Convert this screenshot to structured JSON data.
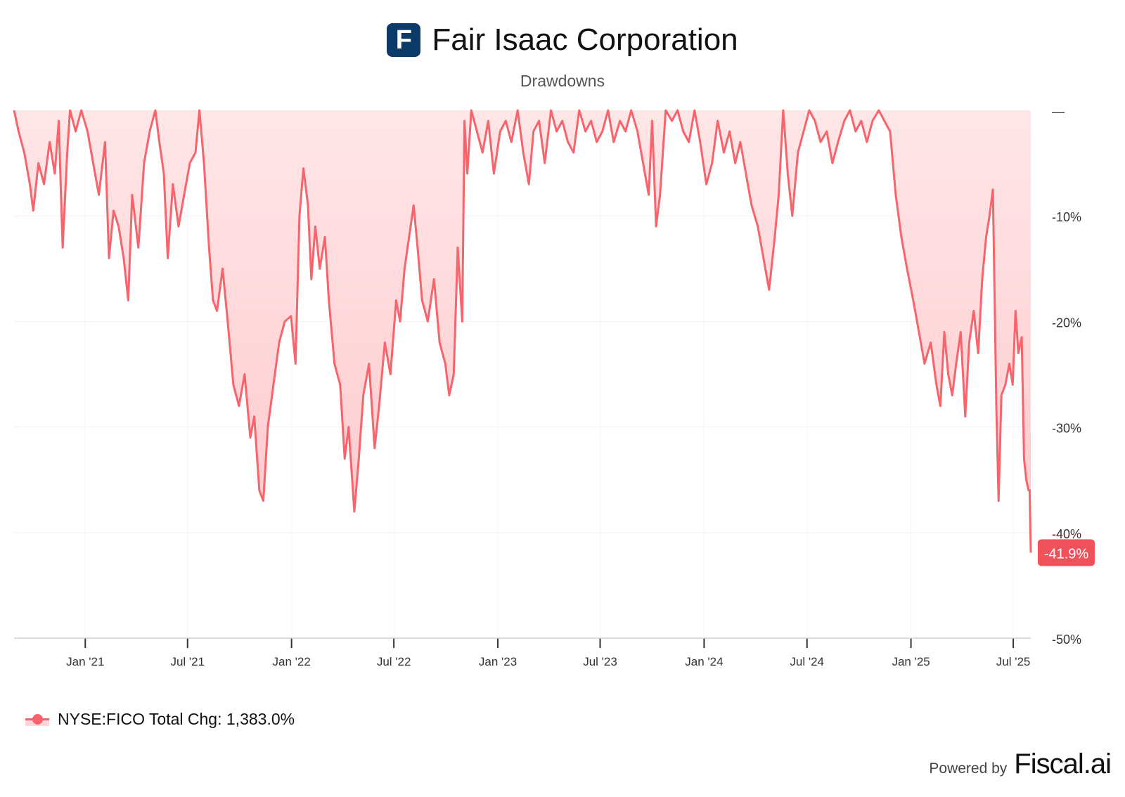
{
  "header": {
    "logo_letter": "F",
    "title": "Fair Isaac Corporation",
    "subtitle": "Drawdowns"
  },
  "footer": {
    "powered_label": "Powered by",
    "brand": "Fiscal.ai"
  },
  "legend": {
    "label": "NYSE:FICO Total Chg: 1,383.0%"
  },
  "colors": {
    "logo_bg": "#0b3b66",
    "line": "#f9636b",
    "fill": "#ffd6d8",
    "badge": "#f0525c"
  },
  "chart_data": {
    "type": "area",
    "title": "Drawdowns",
    "xlabel": "",
    "ylabel": "",
    "xlim": [
      "2020-08-28",
      "2025-08-01"
    ],
    "ylim": [
      -50,
      0
    ],
    "yticks": [
      0,
      -10,
      -20,
      -30,
      -40,
      -50
    ],
    "ytick_labels": [
      "—",
      "-10%",
      "-20%",
      "-30%",
      "-40%",
      "-50%"
    ],
    "xticks": [
      "2021-01-01",
      "2021-07-01",
      "2022-01-01",
      "2022-07-01",
      "2023-01-01",
      "2023-07-01",
      "2024-01-01",
      "2024-07-01",
      "2025-01-01",
      "2025-07-01"
    ],
    "xtick_labels": [
      "Jan '21",
      "Jul '21",
      "Jan '22",
      "Jul '22",
      "Jan '23",
      "Jul '23",
      "Jan '24",
      "Jul '24",
      "Jan '25",
      "Jul '25"
    ],
    "last_value_label": "-41.9%",
    "grid": true,
    "legend_position": "bottom-left",
    "series": [
      {
        "name": "NYSE:FICO",
        "points": [
          [
            "2020-08-28",
            0
          ],
          [
            "2020-09-05",
            -2
          ],
          [
            "2020-09-15",
            -4
          ],
          [
            "2020-09-25",
            -7
          ],
          [
            "2020-10-01",
            -9.5
          ],
          [
            "2020-10-10",
            -5
          ],
          [
            "2020-10-20",
            -7
          ],
          [
            "2020-10-30",
            -3
          ],
          [
            "2020-11-08",
            -6
          ],
          [
            "2020-11-15",
            -1
          ],
          [
            "2020-11-22",
            -13
          ],
          [
            "2020-11-30",
            -4
          ],
          [
            "2020-12-05",
            0
          ],
          [
            "2020-12-15",
            -2
          ],
          [
            "2020-12-25",
            0
          ],
          [
            "2021-01-05",
            -2
          ],
          [
            "2021-01-15",
            -5
          ],
          [
            "2021-01-25",
            -8
          ],
          [
            "2021-02-05",
            -3
          ],
          [
            "2021-02-12",
            -14
          ],
          [
            "2021-02-20",
            -9.5
          ],
          [
            "2021-03-01",
            -11
          ],
          [
            "2021-03-10",
            -14
          ],
          [
            "2021-03-18",
            -18
          ],
          [
            "2021-03-25",
            -8
          ],
          [
            "2021-04-05",
            -13
          ],
          [
            "2021-04-15",
            -5
          ],
          [
            "2021-04-25",
            -2
          ],
          [
            "2021-05-05",
            0
          ],
          [
            "2021-05-12",
            -3
          ],
          [
            "2021-05-20",
            -6
          ],
          [
            "2021-05-27",
            -14
          ],
          [
            "2021-06-05",
            -7
          ],
          [
            "2021-06-15",
            -11
          ],
          [
            "2021-06-25",
            -8
          ],
          [
            "2021-07-05",
            -5
          ],
          [
            "2021-07-15",
            -4
          ],
          [
            "2021-07-22",
            0
          ],
          [
            "2021-07-30",
            -5
          ],
          [
            "2021-08-08",
            -13
          ],
          [
            "2021-08-15",
            -18
          ],
          [
            "2021-08-22",
            -19
          ],
          [
            "2021-09-01",
            -15
          ],
          [
            "2021-09-10",
            -20
          ],
          [
            "2021-09-20",
            -26
          ],
          [
            "2021-09-30",
            -28
          ],
          [
            "2021-10-10",
            -25
          ],
          [
            "2021-10-20",
            -31
          ],
          [
            "2021-10-27",
            -29
          ],
          [
            "2021-11-05",
            -36
          ],
          [
            "2021-11-12",
            -37
          ],
          [
            "2021-11-20",
            -30
          ],
          [
            "2021-11-30",
            -26
          ],
          [
            "2021-12-10",
            -22
          ],
          [
            "2021-12-20",
            -20
          ],
          [
            "2021-12-31",
            -19.5
          ],
          [
            "2022-01-08",
            -24
          ],
          [
            "2022-01-15",
            -10
          ],
          [
            "2022-01-22",
            -5.5
          ],
          [
            "2022-01-30",
            -9
          ],
          [
            "2022-02-05",
            -16
          ],
          [
            "2022-02-12",
            -11
          ],
          [
            "2022-02-20",
            -15
          ],
          [
            "2022-03-01",
            -12
          ],
          [
            "2022-03-08",
            -18
          ],
          [
            "2022-03-18",
            -24
          ],
          [
            "2022-03-28",
            -26
          ],
          [
            "2022-04-05",
            -33
          ],
          [
            "2022-04-12",
            -30
          ],
          [
            "2022-04-22",
            -38
          ],
          [
            "2022-04-30",
            -33
          ],
          [
            "2022-05-08",
            -27
          ],
          [
            "2022-05-18",
            -24
          ],
          [
            "2022-05-28",
            -32
          ],
          [
            "2022-06-05",
            -28
          ],
          [
            "2022-06-15",
            -22
          ],
          [
            "2022-06-25",
            -25
          ],
          [
            "2022-07-05",
            -18
          ],
          [
            "2022-07-12",
            -20
          ],
          [
            "2022-07-20",
            -15
          ],
          [
            "2022-07-28",
            -12
          ],
          [
            "2022-08-05",
            -9
          ],
          [
            "2022-08-12",
            -13
          ],
          [
            "2022-08-20",
            -18
          ],
          [
            "2022-08-30",
            -20
          ],
          [
            "2022-09-10",
            -16
          ],
          [
            "2022-09-20",
            -22
          ],
          [
            "2022-09-30",
            -24
          ],
          [
            "2022-10-07",
            -27
          ],
          [
            "2022-10-15",
            -25
          ],
          [
            "2022-10-22",
            -13
          ],
          [
            "2022-10-30",
            -20
          ],
          [
            "2022-11-03",
            -1
          ],
          [
            "2022-11-08",
            -6
          ],
          [
            "2022-11-15",
            0
          ],
          [
            "2022-11-25",
            -2
          ],
          [
            "2022-12-05",
            -4
          ],
          [
            "2022-12-15",
            -1
          ],
          [
            "2022-12-25",
            -6
          ],
          [
            "2023-01-05",
            -2
          ],
          [
            "2023-01-15",
            -1
          ],
          [
            "2023-01-25",
            -3
          ],
          [
            "2023-02-05",
            0
          ],
          [
            "2023-02-15",
            -4
          ],
          [
            "2023-02-25",
            -7
          ],
          [
            "2023-03-05",
            -2
          ],
          [
            "2023-03-15",
            -1
          ],
          [
            "2023-03-25",
            -5
          ],
          [
            "2023-04-05",
            0
          ],
          [
            "2023-04-15",
            -2
          ],
          [
            "2023-04-25",
            -1
          ],
          [
            "2023-05-05",
            -3
          ],
          [
            "2023-05-15",
            -4
          ],
          [
            "2023-05-25",
            0
          ],
          [
            "2023-06-05",
            -2
          ],
          [
            "2023-06-15",
            -1
          ],
          [
            "2023-06-25",
            -3
          ],
          [
            "2023-07-05",
            -2
          ],
          [
            "2023-07-15",
            0
          ],
          [
            "2023-07-25",
            -3
          ],
          [
            "2023-08-05",
            -1
          ],
          [
            "2023-08-15",
            -2
          ],
          [
            "2023-08-25",
            0
          ],
          [
            "2023-09-05",
            -2
          ],
          [
            "2023-09-15",
            -5
          ],
          [
            "2023-09-25",
            -8
          ],
          [
            "2023-10-01",
            -1
          ],
          [
            "2023-10-08",
            -11
          ],
          [
            "2023-10-15",
            -8
          ],
          [
            "2023-10-25",
            0
          ],
          [
            "2023-11-05",
            -1
          ],
          [
            "2023-11-15",
            0
          ],
          [
            "2023-11-25",
            -2
          ],
          [
            "2023-12-05",
            -3
          ],
          [
            "2023-12-15",
            0
          ],
          [
            "2023-12-25",
            -3
          ],
          [
            "2024-01-05",
            -7
          ],
          [
            "2024-01-15",
            -5
          ],
          [
            "2024-01-25",
            -1
          ],
          [
            "2024-02-05",
            -4
          ],
          [
            "2024-02-15",
            -2
          ],
          [
            "2024-02-25",
            -5
          ],
          [
            "2024-03-05",
            -3
          ],
          [
            "2024-03-15",
            -6
          ],
          [
            "2024-03-25",
            -9
          ],
          [
            "2024-04-05",
            -11
          ],
          [
            "2024-04-15",
            -14
          ],
          [
            "2024-04-25",
            -17
          ],
          [
            "2024-05-05",
            -12
          ],
          [
            "2024-05-12",
            -8
          ],
          [
            "2024-05-20",
            0
          ],
          [
            "2024-05-28",
            -6
          ],
          [
            "2024-06-05",
            -10
          ],
          [
            "2024-06-15",
            -4
          ],
          [
            "2024-06-25",
            -2
          ],
          [
            "2024-07-05",
            0
          ],
          [
            "2024-07-15",
            -1
          ],
          [
            "2024-07-25",
            -3
          ],
          [
            "2024-08-05",
            -2
          ],
          [
            "2024-08-15",
            -5
          ],
          [
            "2024-08-25",
            -3
          ],
          [
            "2024-09-05",
            -1
          ],
          [
            "2024-09-15",
            0
          ],
          [
            "2024-09-25",
            -2
          ],
          [
            "2024-10-05",
            -1
          ],
          [
            "2024-10-15",
            -3
          ],
          [
            "2024-10-25",
            -1
          ],
          [
            "2024-11-05",
            0
          ],
          [
            "2024-11-15",
            -1
          ],
          [
            "2024-11-25",
            -2
          ],
          [
            "2024-12-05",
            -8
          ],
          [
            "2024-12-15",
            -12
          ],
          [
            "2024-12-25",
            -15
          ],
          [
            "2025-01-05",
            -18
          ],
          [
            "2025-01-15",
            -21
          ],
          [
            "2025-01-25",
            -24
          ],
          [
            "2025-02-05",
            -22
          ],
          [
            "2025-02-15",
            -26
          ],
          [
            "2025-02-22",
            -28
          ],
          [
            "2025-03-01",
            -21
          ],
          [
            "2025-03-08",
            -25
          ],
          [
            "2025-03-15",
            -27
          ],
          [
            "2025-03-22",
            -24
          ],
          [
            "2025-03-30",
            -21
          ],
          [
            "2025-04-07",
            -29
          ],
          [
            "2025-04-14",
            -22
          ],
          [
            "2025-04-22",
            -19
          ],
          [
            "2025-04-30",
            -23
          ],
          [
            "2025-05-07",
            -16
          ],
          [
            "2025-05-14",
            -12
          ],
          [
            "2025-05-20",
            -10
          ],
          [
            "2025-05-26",
            -7.5
          ],
          [
            "2025-06-01",
            -28
          ],
          [
            "2025-06-05",
            -37
          ],
          [
            "2025-06-10",
            -27
          ],
          [
            "2025-06-17",
            -26
          ],
          [
            "2025-06-24",
            -24
          ],
          [
            "2025-06-30",
            -26
          ],
          [
            "2025-07-05",
            -19
          ],
          [
            "2025-07-10",
            -23
          ],
          [
            "2025-07-16",
            -21.5
          ],
          [
            "2025-07-20",
            -33
          ],
          [
            "2025-07-24",
            -35
          ],
          [
            "2025-07-28",
            -36
          ],
          [
            "2025-07-30",
            -36
          ],
          [
            "2025-08-01",
            -41.9
          ]
        ]
      }
    ]
  }
}
